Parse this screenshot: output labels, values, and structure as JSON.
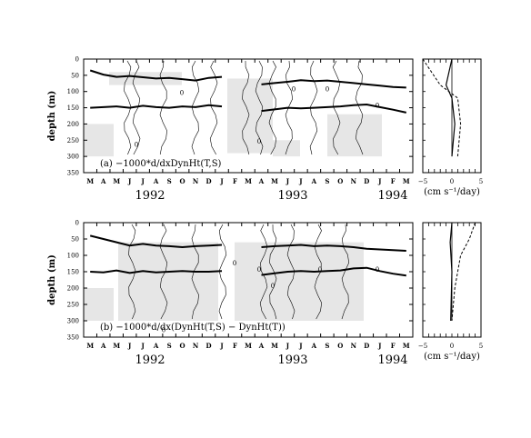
{
  "y_axis": {
    "label": "depth (m)",
    "ticks": [
      0,
      50,
      100,
      150,
      200,
      250,
      300,
      350
    ],
    "range": [
      0,
      350
    ]
  },
  "months": [
    "M",
    "A",
    "M",
    "J",
    "J",
    "A",
    "S",
    "O",
    "N",
    "D",
    "J",
    "F",
    "M",
    "A",
    "M",
    "J",
    "J",
    "A",
    "S",
    "O",
    "N",
    "D",
    "J",
    "F",
    "M"
  ],
  "years": [
    "1992",
    "1993",
    "1994"
  ],
  "side_axis": {
    "ticks": [
      "−5",
      "0",
      "5"
    ],
    "unit": "(cm s⁻¹/day)"
  },
  "chart_data": [
    {
      "type": "contour",
      "panel": "a",
      "label": "(a)   −1000*d/dxDynHt(T,S)",
      "ylim": [
        350,
        0
      ],
      "ylabel": "depth (m)",
      "x_months": [
        "M",
        "A",
        "M",
        "J",
        "J",
        "A",
        "S",
        "O",
        "N",
        "D",
        "J",
        "F",
        "M",
        "A",
        "M",
        "J",
        "J",
        "A",
        "S",
        "O",
        "N",
        "D",
        "J",
        "F",
        "M"
      ],
      "x_years": [
        "1992",
        "1993",
        "1994"
      ],
      "contour_labels": [
        "0",
        "0",
        "0",
        "0",
        "0",
        "0"
      ],
      "thick_lines": [
        {
          "depths": [
            35,
            48,
            55,
            52,
            56,
            60,
            58,
            62,
            66,
            58,
            55,
            null,
            null,
            78,
            74,
            70,
            65,
            68,
            66,
            70,
            74,
            78,
            82,
            86,
            88
          ]
        },
        {
          "depths": [
            150,
            148,
            146,
            150,
            144,
            148,
            150,
            146,
            148,
            142,
            146,
            null,
            null,
            160,
            155,
            150,
            152,
            150,
            148,
            146,
            142,
            140,
            148,
            156,
            165
          ]
        }
      ],
      "side_profile": {
        "xlim": [
          -5,
          5
        ],
        "solid": [
          [
            0,
            0
          ],
          [
            -0.5,
            40
          ],
          [
            -1,
            80
          ],
          [
            0,
            120
          ],
          [
            0.5,
            200
          ],
          [
            0,
            300
          ]
        ],
        "dashed": [
          [
            -5,
            0
          ],
          [
            -3.5,
            40
          ],
          [
            -2,
            80
          ],
          [
            1,
            120
          ],
          [
            1.5,
            200
          ],
          [
            1,
            300
          ]
        ]
      }
    },
    {
      "type": "contour",
      "panel": "b",
      "label": "(b)   −1000*d/dx(DynHt(T,S) − DynHt(T))",
      "ylim": [
        350,
        0
      ],
      "ylabel": "depth (m)",
      "x_months": [
        "M",
        "A",
        "M",
        "J",
        "J",
        "A",
        "S",
        "O",
        "N",
        "D",
        "J",
        "F",
        "M",
        "A",
        "M",
        "J",
        "J",
        "A",
        "S",
        "O",
        "N",
        "D",
        "J",
        "F",
        "M"
      ],
      "x_years": [
        "1992",
        "1993",
        "1994"
      ],
      "contour_labels": [
        "0",
        "0",
        "0",
        "0",
        "0",
        "0"
      ],
      "thick_lines": [
        {
          "depths": [
            40,
            50,
            60,
            70,
            65,
            70,
            72,
            75,
            72,
            70,
            68,
            null,
            null,
            75,
            72,
            70,
            68,
            72,
            70,
            72,
            75,
            80,
            82,
            84,
            86
          ]
        },
        {
          "depths": [
            150,
            152,
            146,
            154,
            148,
            152,
            150,
            148,
            150,
            150,
            148,
            null,
            null,
            160,
            155,
            150,
            148,
            150,
            148,
            146,
            140,
            138,
            148,
            156,
            162
          ]
        }
      ],
      "side_profile": {
        "xlim": [
          -5,
          5
        ],
        "solid": [
          [
            0,
            0
          ],
          [
            -0.3,
            60
          ],
          [
            0,
            150
          ],
          [
            -0.2,
            300
          ]
        ],
        "dashed": [
          [
            4,
            0
          ],
          [
            3,
            50
          ],
          [
            1.5,
            100
          ],
          [
            0.5,
            200
          ],
          [
            0,
            300
          ]
        ]
      }
    }
  ]
}
